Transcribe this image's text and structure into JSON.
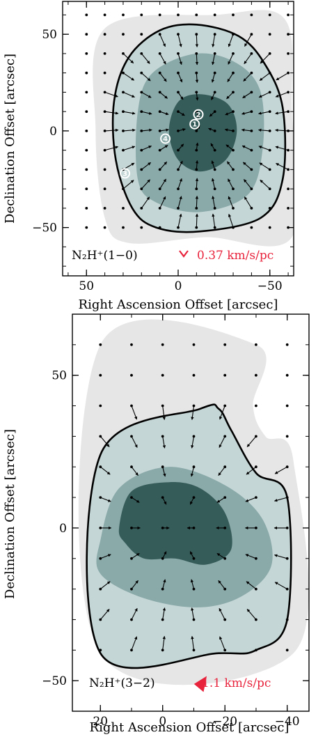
{
  "colors": {
    "level1": "#e6e6e6",
    "level2": "#c5d6d6",
    "level3": "#8aa9a9",
    "level4": "#365c59",
    "accent": "#e8233c",
    "ink": "#000000"
  },
  "chart_data": [
    {
      "type": "vector-field",
      "panel_label": "N2H+(1-0)",
      "transition": "N₂H⁺(1−0)",
      "scale_text": "0.37 km/s/pc",
      "xlabel": "Right Ascension Offset [arcsec]",
      "ylabel": "Declination Offset [arcsec]",
      "xlim": [
        63,
        -63
      ],
      "ylim": [
        -75,
        67
      ],
      "xticks": [
        50,
        0,
        -50
      ],
      "xtick_labels": [
        "50",
        "0",
        "−50"
      ],
      "yticks": [
        50,
        0,
        -50
      ],
      "ytick_labels": [
        "50",
        "0",
        "−50"
      ],
      "grid_step": 10,
      "grid_x": [
        50,
        40,
        30,
        20,
        10,
        0,
        -10,
        -20,
        -30,
        -40,
        -50,
        -60
      ],
      "grid_y": [
        60,
        50,
        40,
        30,
        20,
        10,
        0,
        -10,
        -20,
        -30,
        -40,
        -50
      ],
      "field_center": [
        -12,
        3
      ],
      "field_circular": true,
      "field_scale": 0.4,
      "field_max_radius": 56,
      "sources": [
        {
          "id": "1",
          "x": -9,
          "y": 3.5
        },
        {
          "id": "2",
          "x": -11,
          "y": 8.5
        },
        {
          "id": "3",
          "x": 29,
          "y": -22
        },
        {
          "id": "4",
          "x": 7,
          "y": -4
        }
      ],
      "contours": [
        {
          "level": 1,
          "label": "lowest",
          "points": [
            [
              40,
              53
            ],
            [
              -20,
              60
            ],
            [
              -58,
              58
            ],
            [
              -62,
              10
            ],
            [
              -62,
              -55
            ],
            [
              -15,
              -55
            ],
            [
              27,
              -58
            ],
            [
              40,
              -45
            ],
            [
              45,
              0
            ]
          ]
        },
        {
          "level": 2,
          "label": "outer (bold)",
          "points": [
            [
              -10,
              55
            ],
            [
              -33,
              49
            ],
            [
              -47,
              35
            ],
            [
              -57,
              12
            ],
            [
              -57,
              -25
            ],
            [
              -45,
              -45
            ],
            [
              -12,
              -52
            ],
            [
              12,
              -50
            ],
            [
              25,
              -40
            ],
            [
              34,
              -15
            ],
            [
              35,
              15
            ],
            [
              27,
              38
            ],
            [
              10,
              52
            ]
          ]
        },
        {
          "level": 3,
          "label": "middle",
          "points": [
            [
              -10,
              40
            ],
            [
              -32,
              35
            ],
            [
              -45,
              20
            ],
            [
              -46,
              -10
            ],
            [
              -38,
              -33
            ],
            [
              -12,
              -42
            ],
            [
              12,
              -37
            ],
            [
              22,
              -25
            ],
            [
              22,
              10
            ],
            [
              14,
              30
            ]
          ]
        },
        {
          "level": 4,
          "label": "core",
          "points": [
            [
              -12,
              19
            ],
            [
              -27,
              14
            ],
            [
              -32,
              0
            ],
            [
              -26,
              -15
            ],
            [
              -12,
              -21
            ],
            [
              0,
              -15
            ],
            [
              5,
              0
            ],
            [
              0,
              15
            ]
          ]
        }
      ],
      "bold_contour_level": 2
    },
    {
      "type": "vector-field",
      "panel_label": "N2H+(3-2)",
      "transition": "N₂H⁺(3−2)",
      "scale_text": "1.1 km/s/pc",
      "xlabel": "Right Ascension Offset [arcsec]",
      "ylabel": "Declination Offset [arcsec]",
      "xlim": [
        29,
        -47
      ],
      "ylim": [
        -60,
        70
      ],
      "xticks": [
        20,
        0,
        -20,
        -40
      ],
      "xtick_labels": [
        "20",
        "0",
        "−20",
        "−40"
      ],
      "yticks": [
        50,
        0,
        -50
      ],
      "ytick_labels": [
        "50",
        "0",
        "−50"
      ],
      "grid_step": 10,
      "grid_x": [
        20,
        10,
        0,
        -10,
        -20,
        -30,
        -40
      ],
      "grid_y": [
        60,
        50,
        40,
        30,
        20,
        10,
        0,
        -10,
        -20,
        -30,
        -40
      ],
      "field_center": [
        -5,
        0
      ],
      "field_circular": false,
      "field_scale": 0.55,
      "field_max_radius": 46,
      "field_radial_cut": 0,
      "contours": [
        {
          "level": 1,
          "label": "lowest",
          "points": [
            [
              20,
              60
            ],
            [
              -30,
              60
            ],
            [
              -29,
              40
            ],
            [
              -33,
              30
            ],
            [
              -42,
              22
            ],
            [
              -42,
              -41
            ],
            [
              20,
              -41
            ]
          ]
        },
        {
          "level": 2,
          "label": "outer (bold)",
          "points": [
            [
              20,
              24
            ],
            [
              -12,
              39
            ],
            [
              -18,
              39
            ],
            [
              -22,
              32
            ],
            [
              -30,
              18
            ],
            [
              -40,
              10
            ],
            [
              -40,
              -30
            ],
            [
              -30,
              -40
            ],
            [
              -18,
              -41
            ],
            [
              20,
              -41
            ]
          ]
        },
        {
          "level": 3,
          "label": "middle",
          "points": [
            [
              20,
              -4
            ],
            [
              14,
              13
            ],
            [
              -2,
              20
            ],
            [
              -20,
              14
            ],
            [
              -32,
              3
            ],
            [
              -35,
              -12
            ],
            [
              -26,
              -22
            ],
            [
              -12,
              -26
            ],
            [
              6,
              -23
            ],
            [
              20,
              -15
            ]
          ]
        },
        {
          "level": 4,
          "label": "core",
          "points": [
            [
              14,
              0
            ],
            [
              10,
              12
            ],
            [
              -2,
              15
            ],
            [
              -12,
              13
            ],
            [
              -20,
              5
            ],
            [
              -22,
              -7
            ],
            [
              -14,
              -12
            ],
            [
              -4,
              -10
            ],
            [
              6,
              -10
            ],
            [
              12,
              -5
            ]
          ]
        }
      ],
      "bold_contour_level": 2
    }
  ]
}
